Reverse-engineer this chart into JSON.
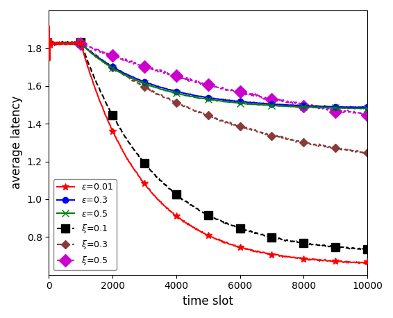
{
  "title": "",
  "xlabel": "time slot",
  "ylabel": "average latency",
  "xlim": [
    0,
    10000
  ],
  "ylim": [
    0.6,
    2.0
  ],
  "yticks": [
    0.8,
    1.0,
    1.2,
    1.4,
    1.6,
    1.8
  ],
  "xticks": [
    0,
    2000,
    4000,
    6000,
    8000,
    10000
  ],
  "series": [
    {
      "label": "$\\varepsilon$=0.01",
      "color": "red",
      "linestyle": "-",
      "marker": "*",
      "markersize": 7,
      "markevery": 1000,
      "zorder": 4,
      "key": "eps_001"
    },
    {
      "label": "$\\varepsilon$=0.3",
      "color": "blue",
      "linestyle": "-",
      "marker": "o",
      "markersize": 6,
      "markevery": 1000,
      "zorder": 3,
      "key": "eps_03"
    },
    {
      "label": "$\\varepsilon$=0.5",
      "color": "green",
      "linestyle": "-",
      "marker": "x",
      "markersize": 7,
      "markevery": 1000,
      "zorder": 3,
      "key": "eps_05"
    },
    {
      "label": "$\\xi$=0.1",
      "color": "black",
      "linestyle": "--",
      "marker": "s",
      "markersize": 8,
      "markevery": 1000,
      "zorder": 2,
      "key": "xi_01"
    },
    {
      "label": "$\\xi$=0.3",
      "color": "#8B3A3A",
      "linestyle": "--",
      "marker": "D",
      "markersize": 6,
      "markevery": 1000,
      "zorder": 2,
      "key": "xi_03"
    },
    {
      "label": "$\\xi$=0.5",
      "color": "#CC00CC",
      "linestyle": "--",
      "marker": "D",
      "markersize": 9,
      "markevery": 1000,
      "zorder": 2,
      "key": "xi_05"
    }
  ],
  "legend_loc": "lower left",
  "legend_fontsize": 9,
  "figsize": [
    5.66,
    4.58
  ],
  "dpi": 100
}
